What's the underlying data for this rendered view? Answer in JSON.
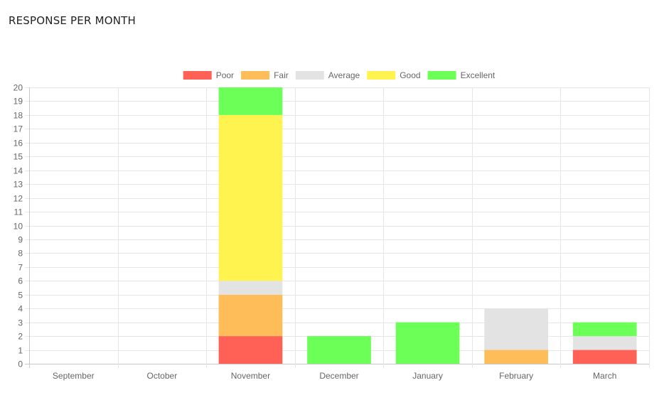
{
  "page": {
    "title": "RESPONSE PER MONTH"
  },
  "chart_data": {
    "type": "bar",
    "stacked": true,
    "title": "",
    "xlabel": "",
    "ylabel": "",
    "ylim": [
      0,
      20
    ],
    "y_step": 1,
    "grid": true,
    "legend_position": "top",
    "categories": [
      "September",
      "October",
      "November",
      "December",
      "January",
      "February",
      "March"
    ],
    "series": [
      {
        "name": "Poor",
        "color": "#ff6157",
        "values": [
          0,
          0,
          2,
          0,
          0,
          0,
          1
        ]
      },
      {
        "name": "Fair",
        "color": "#ffbd59",
        "values": [
          0,
          0,
          3,
          0,
          0,
          1,
          0
        ]
      },
      {
        "name": "Average",
        "color": "#e3e3e3",
        "values": [
          0,
          0,
          1,
          0,
          0,
          3,
          1
        ]
      },
      {
        "name": "Good",
        "color": "#fff44f",
        "values": [
          0,
          0,
          12,
          0,
          0,
          0,
          0
        ]
      },
      {
        "name": "Excellent",
        "color": "#6bff57",
        "values": [
          0,
          0,
          2,
          2,
          3,
          0,
          1
        ]
      }
    ]
  }
}
